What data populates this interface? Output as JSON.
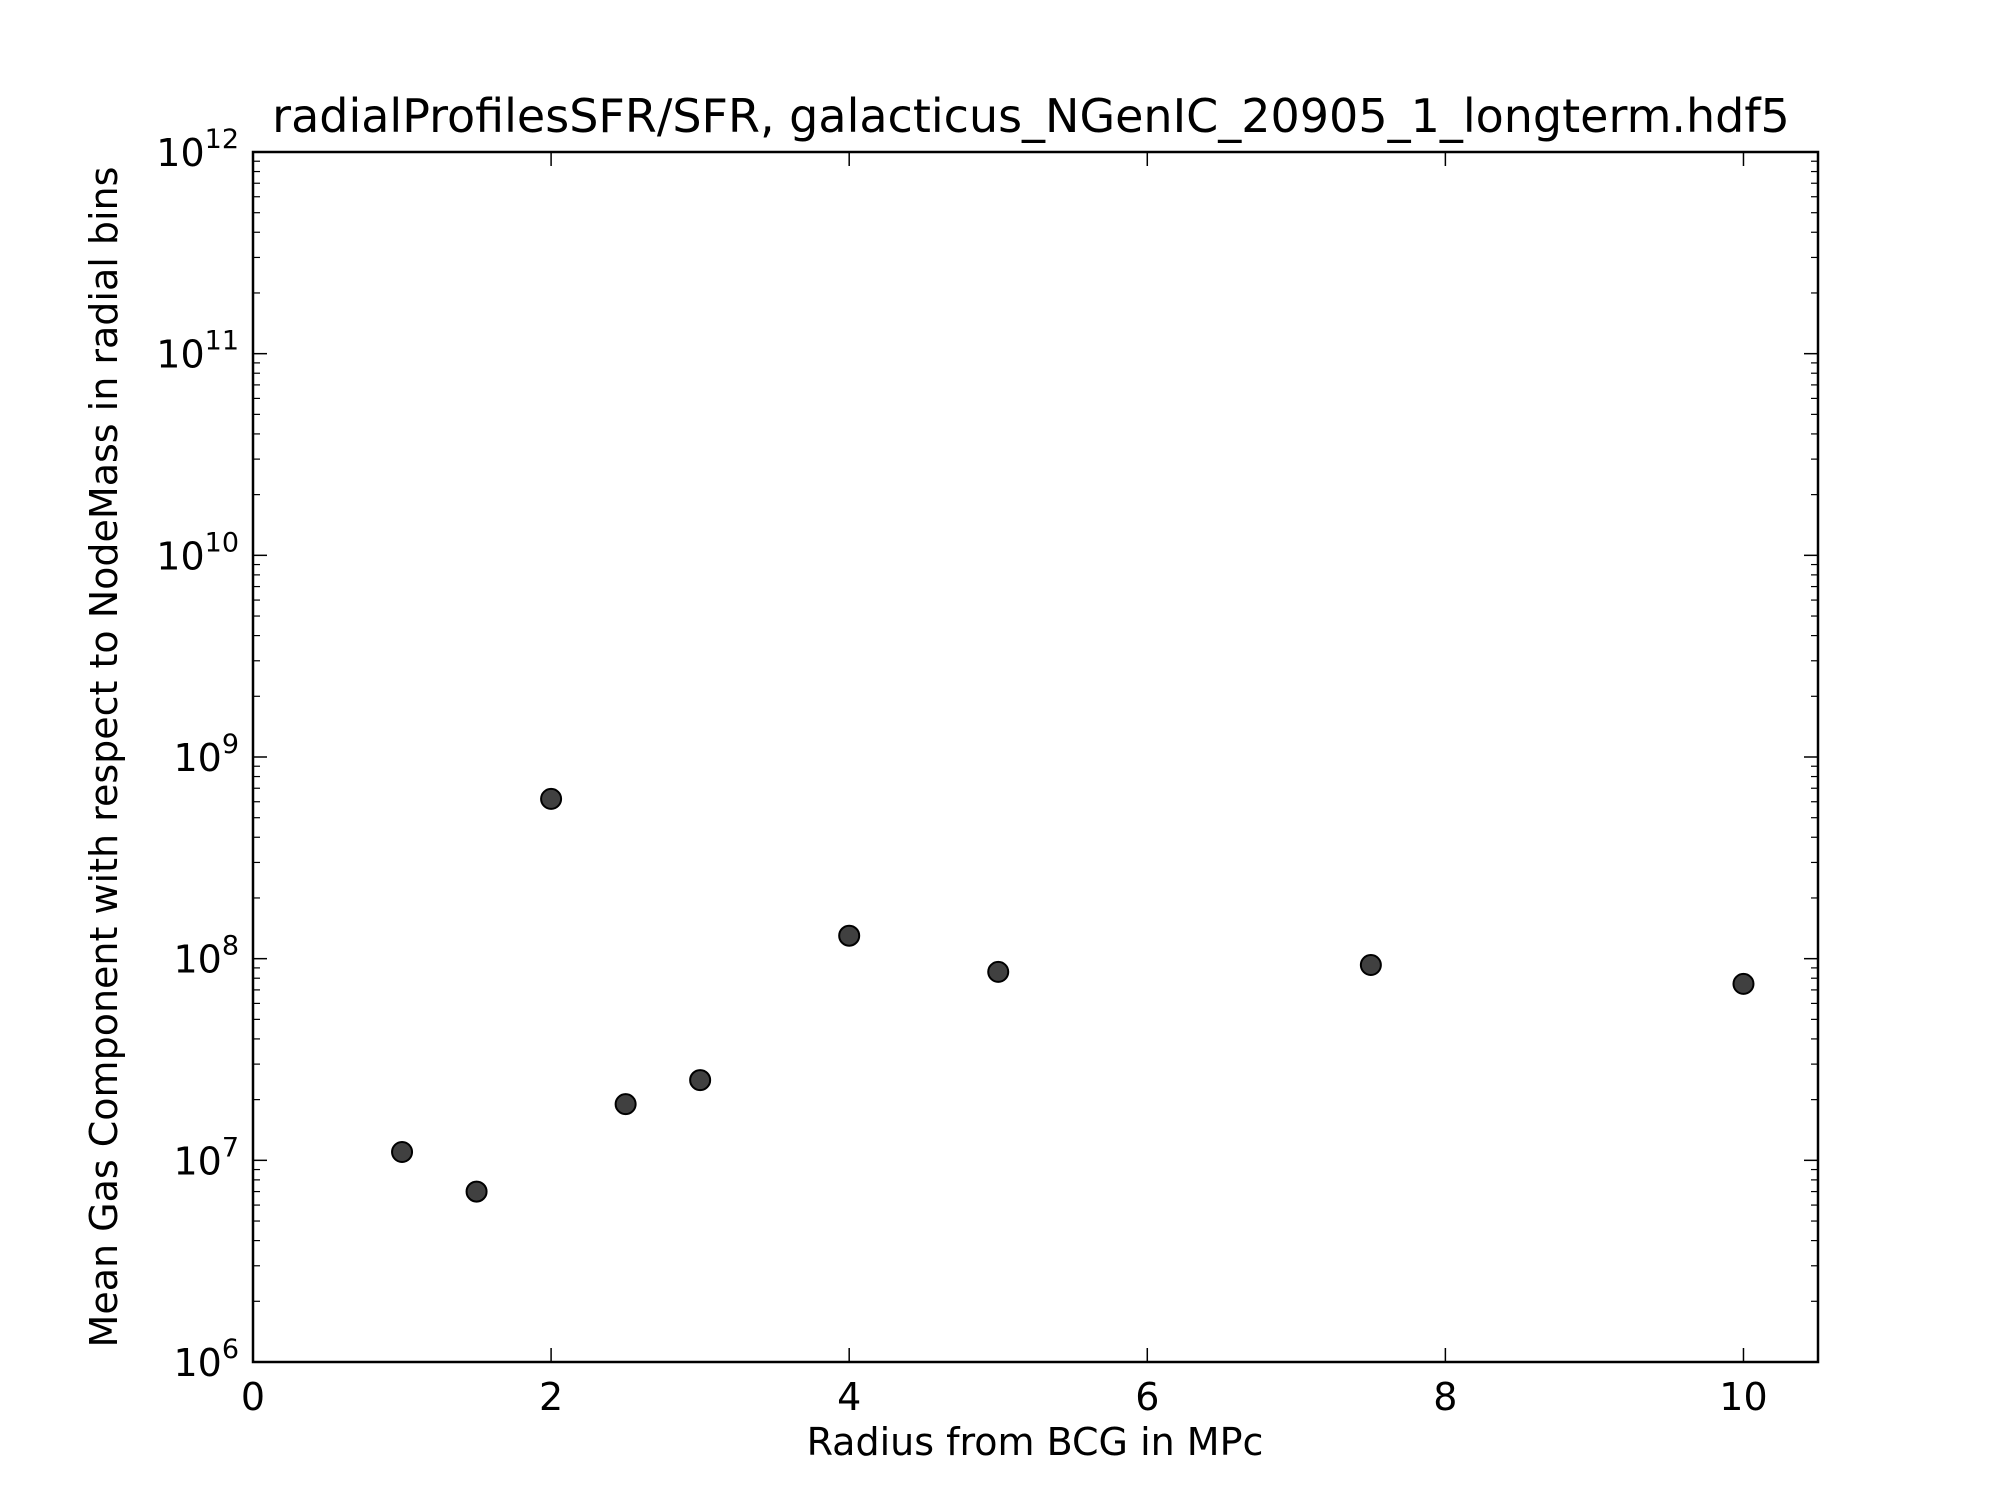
{
  "chart_data": {
    "type": "scatter",
    "title": "radialProfilesSFR/SFR, galacticus_NGenIC_20905_1_longterm.hdf5",
    "xlabel": "Radius from BCG in MPc",
    "ylabel": "Mean Gas Component with respect to NodeMass in radial bins",
    "xlim": [
      0,
      10.5
    ],
    "ylim": [
      1000000,
      1000000000000
    ],
    "yscale": "log",
    "grid": false,
    "x_ticks": [
      "0",
      "2",
      "4",
      "6",
      "8",
      "10"
    ],
    "y_ticks": [
      {
        "base": "10",
        "exp": "6"
      },
      {
        "base": "10",
        "exp": "7"
      },
      {
        "base": "10",
        "exp": "8"
      },
      {
        "base": "10",
        "exp": "9"
      },
      {
        "base": "10",
        "exp": "10"
      },
      {
        "base": "10",
        "exp": "11"
      },
      {
        "base": "10",
        "exp": "12"
      }
    ],
    "marker_color": "#404040",
    "points": [
      {
        "x": 1.0,
        "y": 11000000
      },
      {
        "x": 1.5,
        "y": 7000000
      },
      {
        "x": 2.0,
        "y": 620000000
      },
      {
        "x": 2.5,
        "y": 19000000
      },
      {
        "x": 3.0,
        "y": 25000000
      },
      {
        "x": 4.0,
        "y": 130000000
      },
      {
        "x": 5.0,
        "y": 86000000
      },
      {
        "x": 7.5,
        "y": 93000000
      },
      {
        "x": 10.0,
        "y": 75000000
      }
    ]
  }
}
